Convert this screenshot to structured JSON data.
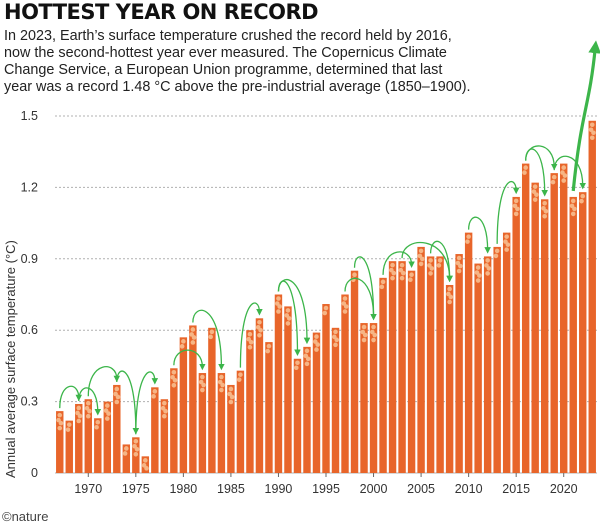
{
  "headline": "HOTTEST YEAR ON RECORD",
  "subtitle": "In 2023, Earth’s surface temperature crushed the record held by 2016, now the second-hottest year ever measured. The Copernicus Climate Change Service, a European Union programme, determined that last year was a record 1.48 °C above the pre-industrial average (1850–1900).",
  "credit": "©nature",
  "colors": {
    "bar": "#e8652a",
    "dots": "#f6b585",
    "arrows": "#3cb54a",
    "grid": "#b0b0b0"
  },
  "chart_data": {
    "type": "bar",
    "title": "HOTTEST YEAR ON RECORD",
    "ylabel": "Annual average surface temperature (°C)",
    "xlabel": "",
    "ylim": [
      0,
      1.5
    ],
    "yticks": [
      "0",
      "0.3",
      "0.6",
      "0.9",
      "1.2",
      "1.5"
    ],
    "xticks": [
      "1970",
      "1975",
      "1980",
      "1985",
      "1990",
      "1995",
      "2000",
      "2005",
      "2010",
      "2015",
      "2020"
    ],
    "grid": true,
    "annotations": "green arrows link each year to the previous hottest year on record; a large upward arrow marks 2023",
    "categories": [
      "1967",
      "1968",
      "1969",
      "1970",
      "1971",
      "1972",
      "1973",
      "1974",
      "1975",
      "1976",
      "1977",
      "1978",
      "1979",
      "1980",
      "1981",
      "1982",
      "1983",
      "1984",
      "1985",
      "1986",
      "1987",
      "1988",
      "1989",
      "1990",
      "1991",
      "1992",
      "1993",
      "1994",
      "1995",
      "1996",
      "1997",
      "1998",
      "1999",
      "2000",
      "2001",
      "2002",
      "2003",
      "2004",
      "2005",
      "2006",
      "2007",
      "2008",
      "2009",
      "2010",
      "2011",
      "2012",
      "2013",
      "2014",
      "2015",
      "2016",
      "2017",
      "2018",
      "2019",
      "2020",
      "2021",
      "2022",
      "2023"
    ],
    "values": [
      0.26,
      0.22,
      0.29,
      0.31,
      0.23,
      0.3,
      0.37,
      0.12,
      0.15,
      0.07,
      0.36,
      0.31,
      0.44,
      0.57,
      0.62,
      0.42,
      0.61,
      0.42,
      0.37,
      0.43,
      0.6,
      0.65,
      0.55,
      0.75,
      0.7,
      0.48,
      0.53,
      0.59,
      0.71,
      0.61,
      0.75,
      0.85,
      0.63,
      0.63,
      0.82,
      0.89,
      0.89,
      0.85,
      0.95,
      0.91,
      0.91,
      0.79,
      0.92,
      1.01,
      0.88,
      0.91,
      0.95,
      1.01,
      1.16,
      1.3,
      1.22,
      1.15,
      1.26,
      1.3,
      1.16,
      1.18,
      1.48
    ]
  }
}
